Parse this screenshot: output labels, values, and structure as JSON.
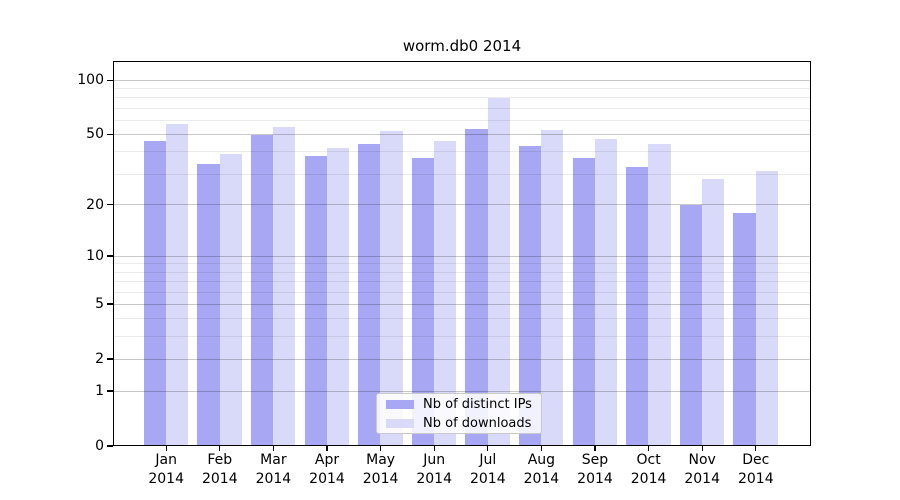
{
  "figure": {
    "title": "worm.db0 2014"
  },
  "chart_data": {
    "type": "bar",
    "title": "worm.db0 2014",
    "categories": [
      "Jan 2014",
      "Feb 2014",
      "Mar 2014",
      "Apr 2014",
      "May 2014",
      "Jun 2014",
      "Jul 2014",
      "Aug 2014",
      "Sep 2014",
      "Oct 2014",
      "Nov 2014",
      "Dec 2014"
    ],
    "series": [
      {
        "name": "Nb of distinct IPs",
        "color": "#a7a7f3",
        "values": [
          46,
          34,
          50,
          38,
          44,
          37,
          54,
          43,
          37,
          33,
          20,
          18
        ]
      },
      {
        "name": "Nb of downloads",
        "color": "#d9d9f9",
        "values": [
          57,
          39,
          55,
          42,
          52,
          46,
          80,
          53,
          47,
          44,
          28,
          31
        ]
      }
    ],
    "xlabel": "",
    "ylabel": "",
    "yscale": "log1p",
    "ylim": [
      0,
      126
    ],
    "y_ticks": [
      0,
      1,
      2,
      5,
      10,
      20,
      50,
      100
    ],
    "y_tick_labels": [
      "0",
      "1",
      "2",
      "5",
      "10",
      "20",
      "50",
      "100"
    ],
    "y_minor_gridlines": [
      3,
      4,
      6,
      7,
      8,
      9,
      30,
      40,
      60,
      70,
      80,
      90
    ],
    "grid": true,
    "legend_position": "lower center",
    "colors": {
      "major_grid": "rgba(0,0,0,0.21)",
      "minor_grid": "rgba(0,0,0,0.08)",
      "spine": "#000000",
      "text": "#000000",
      "background": "#ffffff"
    }
  }
}
